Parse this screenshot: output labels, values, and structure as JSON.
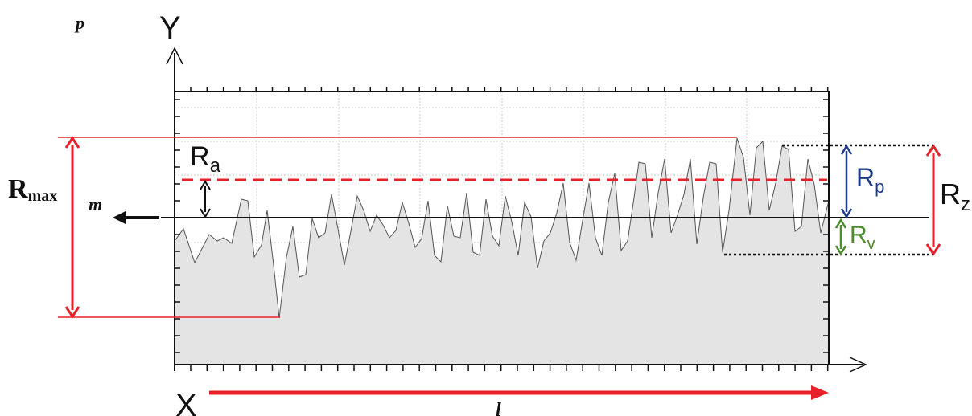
{
  "labels": {
    "p": "p",
    "y_axis": "Y",
    "x_axis": "X",
    "ra_main": "R",
    "ra_sub": "a",
    "rmax_main": "R",
    "rmax_sub": "max",
    "m": "m",
    "rp_main": "R",
    "rp_sub": "p",
    "rv_main": "R",
    "rv_sub": "v",
    "rz_main": "R",
    "rz_sub": "z",
    "l": "l"
  },
  "colors": {
    "profile_fill": "#e4e4e4",
    "profile_line": "#555555",
    "grid": "#c8c8c8",
    "red": "#e8202a",
    "blue": "#1f3b8a",
    "green": "#4c8c2c",
    "black": "#111111"
  }
}
